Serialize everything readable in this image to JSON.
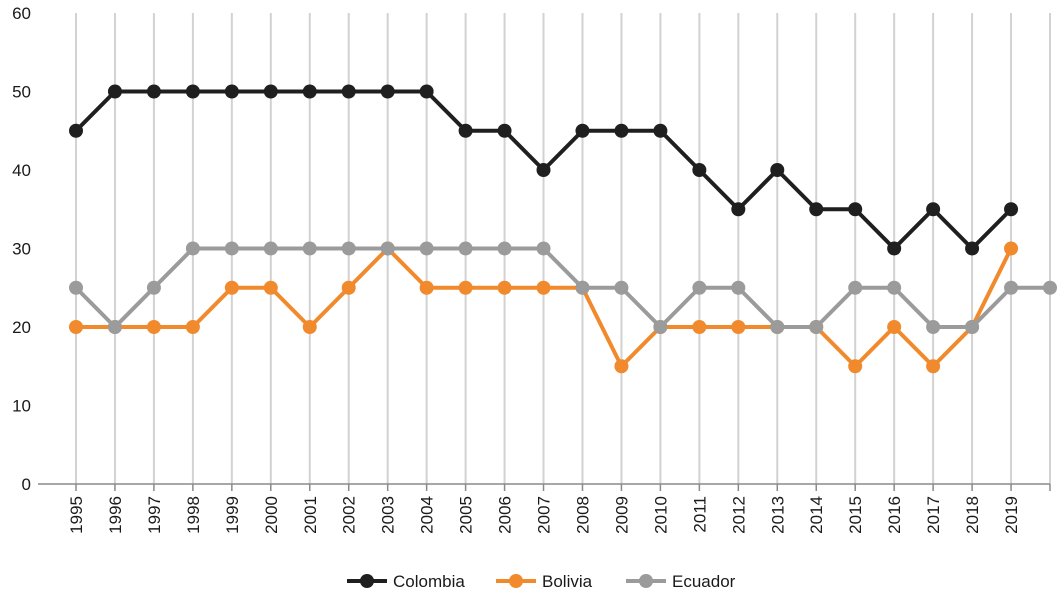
{
  "chart_data": {
    "type": "line",
    "title": "",
    "xlabel": "",
    "ylabel": "",
    "ylim": [
      0,
      60
    ],
    "yticks": [
      0,
      10,
      20,
      30,
      40,
      50,
      60
    ],
    "grid": "vertical",
    "legend_position": "bottom-center",
    "x": [
      "1995",
      "1996",
      "1997",
      "1998",
      "1999",
      "2000",
      "2001",
      "2002",
      "2003",
      "2004",
      "2005",
      "2006",
      "2007",
      "2008",
      "2009",
      "2010",
      "2011",
      "2012",
      "2013",
      "2014",
      "2015",
      "2016",
      "2017",
      "2018",
      "2019",
      ""
    ],
    "series": [
      {
        "name": "Colombia",
        "color": "#1f1f1f",
        "values": [
          45,
          50,
          50,
          50,
          50,
          50,
          50,
          50,
          50,
          50,
          45,
          45,
          40,
          45,
          45,
          45,
          40,
          35,
          40,
          35,
          35,
          30,
          35,
          30,
          35,
          null
        ]
      },
      {
        "name": "Bolivia",
        "color": "#f08a2c",
        "values": [
          20,
          20,
          20,
          20,
          25,
          25,
          20,
          25,
          30,
          25,
          25,
          25,
          25,
          25,
          15,
          20,
          20,
          20,
          20,
          20,
          15,
          20,
          15,
          20,
          30,
          null
        ]
      },
      {
        "name": "Ecuador",
        "color": "#9b9b9b",
        "values": [
          25,
          20,
          25,
          30,
          30,
          30,
          30,
          30,
          30,
          30,
          30,
          30,
          30,
          25,
          25,
          20,
          25,
          25,
          20,
          20,
          25,
          25,
          20,
          20,
          25,
          25
        ]
      }
    ]
  }
}
